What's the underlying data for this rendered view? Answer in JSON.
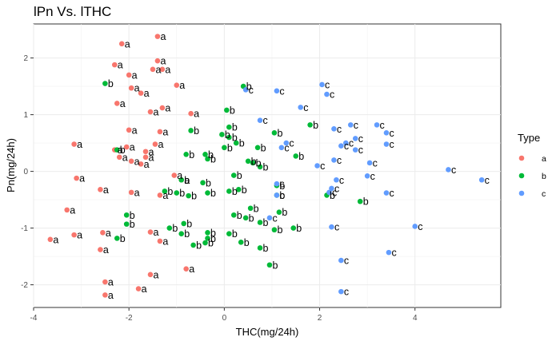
{
  "chart_data": {
    "type": "scatter",
    "title": "lPn Vs. lTHC",
    "xlabel": "THC(mg/24h)",
    "ylabel": "Pn(mg/24h)",
    "xlim": [
      -4.0,
      5.8
    ],
    "ylim": [
      -2.4,
      2.6
    ],
    "x_ticks": [
      -4,
      -2,
      0,
      2,
      4
    ],
    "y_ticks": [
      -2,
      -1,
      0,
      1,
      2
    ],
    "grid": true,
    "legend": {
      "title": "Type",
      "position": "right"
    },
    "series": [
      {
        "name": "a",
        "color": "#F8766D",
        "points": [
          [
            -2.15,
            2.25
          ],
          [
            -1.4,
            2.38
          ],
          [
            -2.3,
            1.88
          ],
          [
            -1.4,
            1.95
          ],
          [
            -2.0,
            1.7
          ],
          [
            -1.5,
            1.8
          ],
          [
            -1.3,
            1.8
          ],
          [
            -1.0,
            1.52
          ],
          [
            -1.95,
            1.47
          ],
          [
            -1.75,
            1.38
          ],
          [
            -2.25,
            1.2
          ],
          [
            -1.3,
            1.12
          ],
          [
            -1.55,
            1.05
          ],
          [
            -0.7,
            1.02
          ],
          [
            -2.0,
            0.73
          ],
          [
            -1.35,
            0.7
          ],
          [
            -3.15,
            0.48
          ],
          [
            -1.45,
            0.48
          ],
          [
            -2.05,
            0.43
          ],
          [
            -2.3,
            0.38
          ],
          [
            -1.65,
            0.35
          ],
          [
            -2.2,
            0.25
          ],
          [
            -1.65,
            0.25
          ],
          [
            -1.95,
            0.18
          ],
          [
            -1.75,
            0.13
          ],
          [
            -1.05,
            -0.07
          ],
          [
            -3.1,
            -0.12
          ],
          [
            -0.9,
            -0.15
          ],
          [
            -2.6,
            -0.32
          ],
          [
            -1.95,
            -0.37
          ],
          [
            -1.35,
            -0.42
          ],
          [
            -3.3,
            -0.68
          ],
          [
            -3.15,
            -1.12
          ],
          [
            -2.55,
            -1.08
          ],
          [
            -1.55,
            -1.07
          ],
          [
            -3.65,
            -1.2
          ],
          [
            -1.35,
            -1.23
          ],
          [
            -2.6,
            -1.38
          ],
          [
            -0.8,
            -1.72
          ],
          [
            -1.55,
            -1.82
          ],
          [
            -2.5,
            -1.95
          ],
          [
            -1.8,
            -2.07
          ],
          [
            -2.5,
            -2.18
          ]
        ]
      },
      {
        "name": "b",
        "color": "#00BA38",
        "points": [
          [
            -2.5,
            1.55
          ],
          [
            0.4,
            1.5
          ],
          [
            0.05,
            1.08
          ],
          [
            -0.7,
            0.72
          ],
          [
            0.1,
            0.78
          ],
          [
            1.05,
            0.68
          ],
          [
            0.1,
            0.6
          ],
          [
            1.8,
            0.82
          ],
          [
            -0.05,
            0.65
          ],
          [
            0.25,
            0.5
          ],
          [
            0.0,
            0.42
          ],
          [
            0.7,
            0.42
          ],
          [
            -0.8,
            0.3
          ],
          [
            -0.4,
            0.3
          ],
          [
            1.5,
            0.27
          ],
          [
            0.5,
            0.18
          ],
          [
            0.6,
            0.15
          ],
          [
            -2.25,
            0.38
          ],
          [
            -0.35,
            0.22
          ],
          [
            0.75,
            0.08
          ],
          [
            0.2,
            -0.07
          ],
          [
            -0.45,
            -0.2
          ],
          [
            1.1,
            -0.25
          ],
          [
            -0.9,
            -0.15
          ],
          [
            0.1,
            -0.35
          ],
          [
            0.3,
            -0.32
          ],
          [
            -0.35,
            -0.38
          ],
          [
            -1.0,
            -0.38
          ],
          [
            -1.25,
            -0.35
          ],
          [
            1.1,
            -0.42
          ],
          [
            -0.75,
            -0.43
          ],
          [
            2.15,
            -0.42
          ],
          [
            2.85,
            -0.53
          ],
          [
            -2.05,
            -0.77
          ],
          [
            0.55,
            -0.65
          ],
          [
            0.2,
            -0.77
          ],
          [
            0.45,
            -0.82
          ],
          [
            1.15,
            -0.72
          ],
          [
            -0.85,
            -0.92
          ],
          [
            0.75,
            -0.9
          ],
          [
            -2.05,
            -0.93
          ],
          [
            1.05,
            -1.03
          ],
          [
            1.45,
            -1.0
          ],
          [
            -1.15,
            -1.0
          ],
          [
            -0.9,
            -1.1
          ],
          [
            0.1,
            -1.1
          ],
          [
            -0.35,
            -1.08
          ],
          [
            -2.25,
            -1.18
          ],
          [
            -0.35,
            -1.18
          ],
          [
            -0.4,
            -1.26
          ],
          [
            -0.65,
            -1.3
          ],
          [
            0.35,
            -1.25
          ],
          [
            0.75,
            -1.35
          ],
          [
            0.95,
            -1.65
          ]
        ]
      },
      {
        "name": "c",
        "color": "#619CFF",
        "points": [
          [
            2.05,
            1.53
          ],
          [
            0.45,
            1.44
          ],
          [
            1.1,
            1.42
          ],
          [
            2.15,
            1.36
          ],
          [
            1.6,
            1.13
          ],
          [
            0.75,
            0.9
          ],
          [
            2.3,
            0.75
          ],
          [
            2.65,
            0.82
          ],
          [
            3.2,
            0.82
          ],
          [
            3.4,
            0.68
          ],
          [
            2.75,
            0.58
          ],
          [
            2.55,
            0.5
          ],
          [
            2.45,
            0.45
          ],
          [
            1.3,
            0.5
          ],
          [
            3.4,
            0.48
          ],
          [
            2.75,
            0.38
          ],
          [
            1.2,
            0.42
          ],
          [
            2.3,
            0.2
          ],
          [
            1.95,
            0.1
          ],
          [
            3.05,
            0.15
          ],
          [
            4.7,
            0.03
          ],
          [
            3.0,
            -0.08
          ],
          [
            2.35,
            -0.15
          ],
          [
            5.4,
            -0.15
          ],
          [
            1.1,
            -0.22
          ],
          [
            2.25,
            -0.3
          ],
          [
            2.2,
            -0.37
          ],
          [
            3.4,
            -0.38
          ],
          [
            1.1,
            -0.42
          ],
          [
            0.95,
            -0.82
          ],
          [
            2.25,
            -0.98
          ],
          [
            4.0,
            -0.97
          ],
          [
            3.45,
            -1.43
          ],
          [
            2.45,
            -1.57
          ],
          [
            2.45,
            -2.12
          ]
        ]
      }
    ]
  }
}
